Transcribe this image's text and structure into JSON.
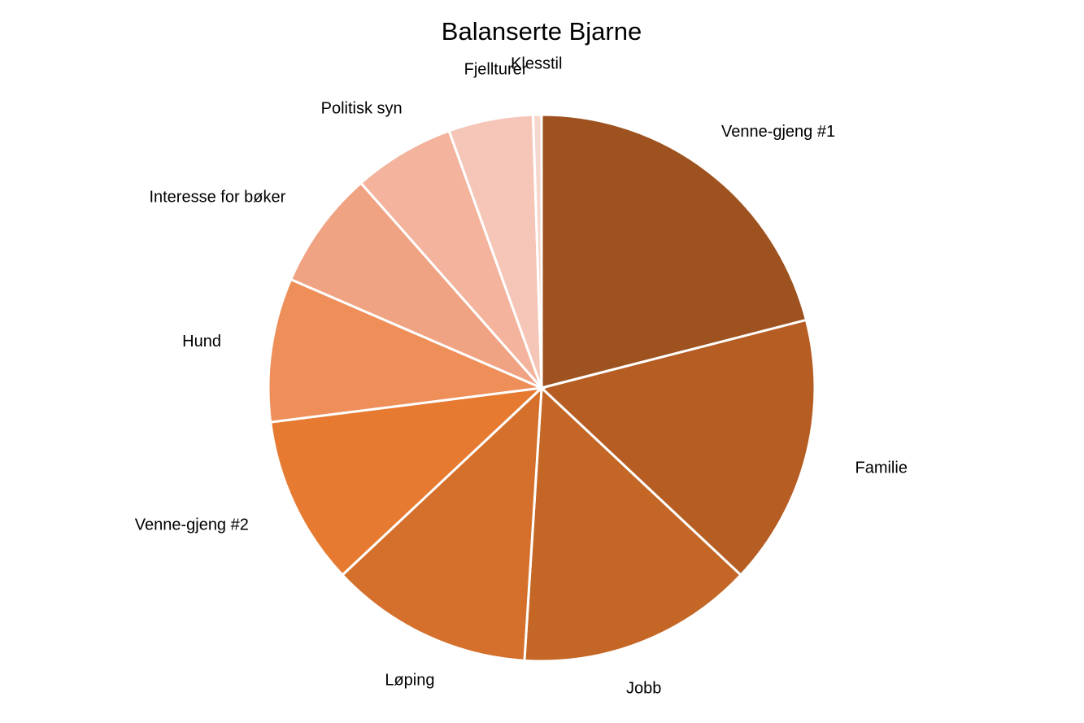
{
  "chart_data": {
    "type": "pie",
    "title": "Balanserte Bjarne",
    "categories": [
      "Venne-gjeng #1",
      "Familie",
      "Jobb",
      "Løping",
      "Venne-gjeng #2",
      "Hund",
      "Interesse for bøker",
      "Politisk syn",
      "Fjellturer",
      "Klesstil"
    ],
    "values": [
      21,
      16,
      14,
      12,
      10,
      8.5,
      7,
      6,
      5,
      0.5
    ],
    "colors": [
      "#9e521f",
      "#b55d23",
      "#c46626",
      "#d4702b",
      "#e67a31",
      "#ee8e59",
      "#f0a383",
      "#f3b39d",
      "#f5c6b8",
      "#f6d7cd"
    ]
  }
}
